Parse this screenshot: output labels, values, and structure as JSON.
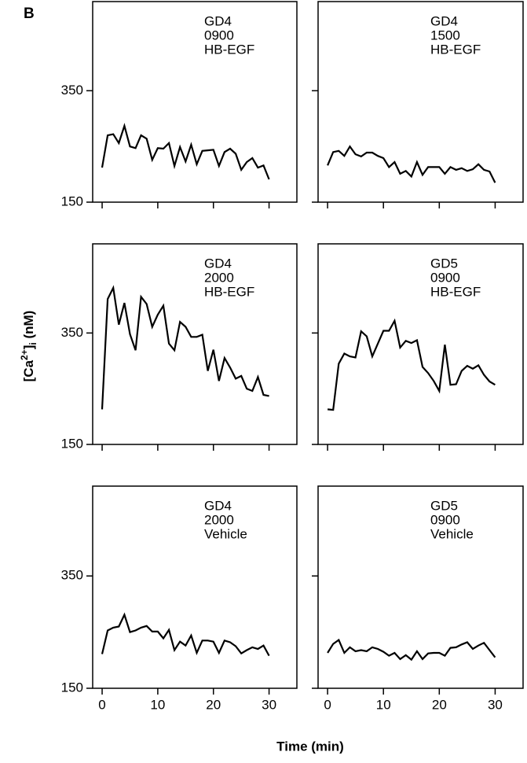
{
  "figure": {
    "label": "B",
    "ylabel_parts": [
      "[Ca",
      "2+",
      "]",
      "i",
      " (nM)"
    ],
    "xlabel": "Time (min)"
  },
  "chart_data": [
    {
      "type": "line",
      "annotation": [
        "GD4",
        "0900",
        "HB-EGF"
      ],
      "color": "#000000",
      "xlim": [
        -1.7,
        35
      ],
      "ylim": [
        150,
        510
      ],
      "xticks": [
        0,
        10,
        20,
        30
      ],
      "yticks": [
        150,
        350
      ],
      "xtick_labels": false,
      "ytick_labels": true,
      "x": [
        0,
        1,
        2,
        3,
        4,
        5,
        6,
        7,
        8,
        9,
        10,
        11,
        12,
        13,
        14,
        15,
        16,
        17,
        18,
        19,
        20,
        21,
        22,
        23,
        24,
        25,
        26,
        27,
        28,
        29,
        30
      ],
      "values": [
        212,
        270,
        272,
        256,
        287,
        250,
        247,
        270,
        264,
        226,
        247,
        246,
        256,
        215,
        249,
        223,
        253,
        218,
        242,
        243,
        244,
        215,
        240,
        246,
        237,
        208,
        222,
        229,
        212,
        216,
        191
      ]
    },
    {
      "type": "line",
      "annotation": [
        "GD4",
        "1500",
        "HB-EGF"
      ],
      "color": "#000000",
      "xlim": [
        -1.7,
        35
      ],
      "ylim": [
        150,
        510
      ],
      "xticks": [
        0,
        10,
        20,
        30
      ],
      "yticks": [
        150,
        350
      ],
      "xtick_labels": false,
      "ytick_labels": false,
      "x": [
        0,
        1,
        2,
        3,
        4,
        5,
        6,
        7,
        8,
        9,
        10,
        11,
        12,
        13,
        14,
        15,
        16,
        17,
        18,
        19,
        20,
        21,
        22,
        23,
        24,
        25,
        26,
        27,
        28,
        29,
        30
      ],
      "values": [
        216,
        240,
        242,
        233,
        250,
        236,
        232,
        239,
        239,
        233,
        229,
        213,
        222,
        201,
        206,
        196,
        222,
        199,
        213,
        213,
        213,
        201,
        213,
        208,
        211,
        206,
        209,
        218,
        208,
        205,
        185
      ]
    },
    {
      "type": "line",
      "annotation": [
        "GD4",
        "2000",
        "HB-EGF"
      ],
      "color": "#000000",
      "xlim": [
        -1.7,
        35
      ],
      "ylim": [
        150,
        510
      ],
      "xticks": [
        0,
        10,
        20,
        30
      ],
      "yticks": [
        150,
        350
      ],
      "xtick_labels": false,
      "ytick_labels": true,
      "x": [
        0,
        1,
        2,
        3,
        4,
        5,
        6,
        7,
        8,
        9,
        10,
        11,
        12,
        13,
        14,
        15,
        16,
        17,
        18,
        19,
        20,
        21,
        22,
        23,
        24,
        25,
        26,
        27,
        28,
        29,
        30
      ],
      "values": [
        213,
        411,
        431,
        365,
        404,
        348,
        319,
        415,
        402,
        361,
        383,
        399,
        331,
        319,
        370,
        361,
        343,
        343,
        347,
        282,
        320,
        264,
        305,
        288,
        268,
        273,
        250,
        246,
        271,
        239,
        237
      ]
    },
    {
      "type": "line",
      "annotation": [
        "GD5",
        "0900",
        "HB-EGF"
      ],
      "color": "#000000",
      "xlim": [
        -1.7,
        35
      ],
      "ylim": [
        150,
        510
      ],
      "xticks": [
        0,
        10,
        20,
        30
      ],
      "yticks": [
        150,
        350
      ],
      "xtick_labels": false,
      "ytick_labels": false,
      "x": [
        0,
        1,
        2,
        3,
        4,
        5,
        6,
        7,
        8,
        9,
        10,
        11,
        12,
        13,
        14,
        15,
        16,
        17,
        18,
        19,
        20,
        21,
        22,
        23,
        24,
        25,
        26,
        27,
        28,
        29,
        30
      ],
      "values": [
        213,
        212,
        295,
        313,
        308,
        306,
        353,
        344,
        308,
        331,
        354,
        354,
        372,
        324,
        336,
        332,
        337,
        289,
        278,
        264,
        246,
        329,
        257,
        258,
        282,
        291,
        286,
        292,
        275,
        263,
        257
      ]
    },
    {
      "type": "line",
      "annotation": [
        "GD4",
        "2000",
        "Vehicle"
      ],
      "color": "#000000",
      "xlim": [
        -1.7,
        35
      ],
      "ylim": [
        150,
        510
      ],
      "xticks": [
        0,
        10,
        20,
        30
      ],
      "yticks": [
        150,
        350
      ],
      "xtick_labels": true,
      "ytick_labels": true,
      "x": [
        0,
        1,
        2,
        3,
        4,
        5,
        6,
        7,
        8,
        9,
        10,
        11,
        12,
        13,
        14,
        15,
        16,
        17,
        18,
        19,
        20,
        21,
        22,
        23,
        24,
        25,
        26,
        27,
        28,
        29,
        30
      ],
      "values": [
        211,
        253,
        258,
        260,
        281,
        250,
        253,
        258,
        261,
        251,
        251,
        239,
        254,
        218,
        233,
        226,
        244,
        213,
        235,
        235,
        233,
        213,
        235,
        232,
        225,
        212,
        218,
        223,
        220,
        226,
        208
      ]
    },
    {
      "type": "line",
      "annotation": [
        "GD5",
        "0900",
        "Vehicle"
      ],
      "color": "#000000",
      "xlim": [
        -1.7,
        35
      ],
      "ylim": [
        150,
        510
      ],
      "xticks": [
        0,
        10,
        20,
        30
      ],
      "yticks": [
        150,
        350
      ],
      "xtick_labels": true,
      "ytick_labels": false,
      "x": [
        0,
        1,
        2,
        3,
        4,
        5,
        6,
        7,
        8,
        9,
        10,
        11,
        12,
        13,
        14,
        15,
        16,
        17,
        18,
        19,
        20,
        21,
        22,
        23,
        24,
        25,
        26,
        27,
        28,
        29,
        30
      ],
      "values": [
        213,
        229,
        236,
        213,
        223,
        216,
        218,
        216,
        223,
        220,
        215,
        208,
        213,
        202,
        209,
        201,
        216,
        202,
        212,
        213,
        213,
        208,
        222,
        223,
        228,
        232,
        220,
        226,
        231,
        218,
        205
      ]
    }
  ]
}
